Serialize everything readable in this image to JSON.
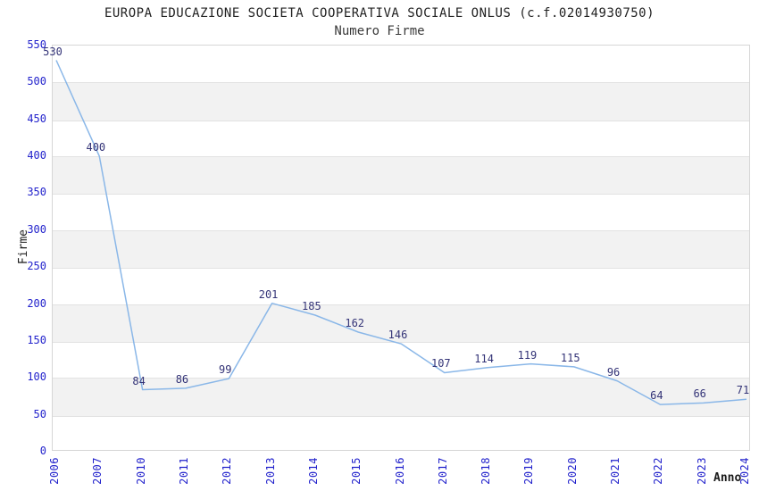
{
  "chart": {
    "title": "EUROPA EDUCAZIONE SOCIETA COOPERATIVA SOCIALE ONLUS (c.f.02014930750)",
    "subtitle": "Numero Firme",
    "y_axis_title": "Firme",
    "x_axis_title": "Anno"
  },
  "chart_data": {
    "type": "line",
    "title": "Numero Firme",
    "xlabel": "Anno",
    "ylabel": "Firme",
    "categories": [
      "2006",
      "2007",
      "2010",
      "2011",
      "2012",
      "2013",
      "2014",
      "2015",
      "2016",
      "2017",
      "2018",
      "2019",
      "2020",
      "2021",
      "2022",
      "2023",
      "2024"
    ],
    "values": [
      530,
      400,
      84,
      86,
      99,
      201,
      185,
      162,
      146,
      107,
      114,
      119,
      115,
      96,
      64,
      66,
      71
    ],
    "ylim": [
      0,
      550
    ],
    "y_tick_step": 50,
    "y_ticks": [
      0,
      50,
      100,
      150,
      200,
      250,
      300,
      350,
      400,
      450,
      500,
      550
    ],
    "grid": "alternating-horizontal-bands",
    "band_tops": [
      500,
      400,
      300,
      200,
      100
    ],
    "legend": "none",
    "data_labels_shown": true,
    "x_tick_rotation": -90,
    "colors": {
      "line": "#8ab7e8",
      "tick_label": "#2323cc",
      "data_label": "#333377",
      "band_fill": "#f2f2f2",
      "plot_border": "#d6d6d6",
      "title_text": "#222222",
      "background": "#ffffff"
    }
  }
}
